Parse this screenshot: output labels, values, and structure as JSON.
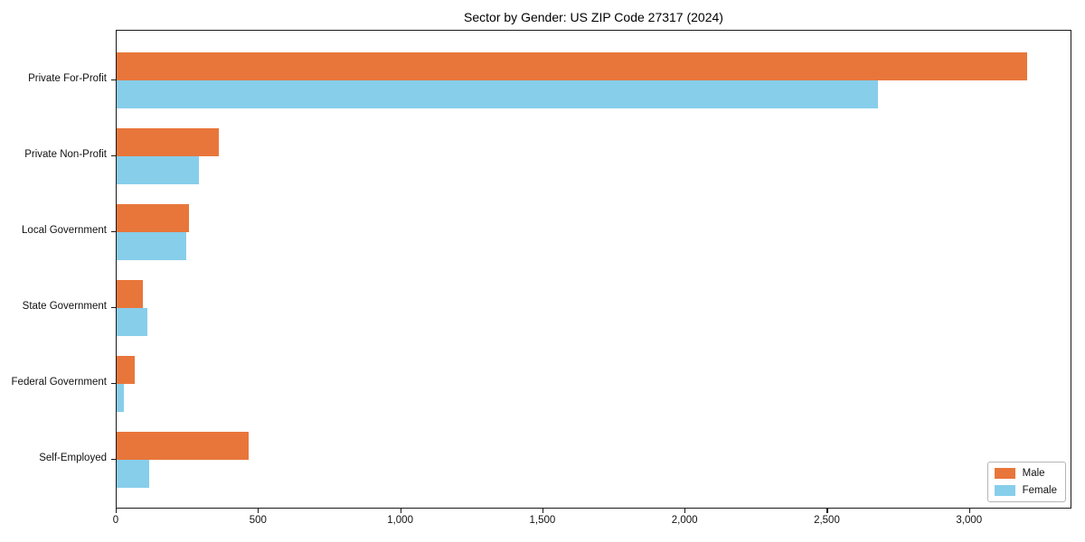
{
  "chart_data": {
    "type": "bar",
    "orientation": "horizontal",
    "title": "Sector by Gender: US ZIP Code 27317 (2024)",
    "categories": [
      "Private For-Profit",
      "Private Non-Profit",
      "Local Government",
      "State Government",
      "Federal Government",
      "Self-Employed"
    ],
    "series": [
      {
        "name": "Male",
        "color": "#E8763B",
        "values": [
          3200,
          358,
          254,
          92,
          65,
          463
        ]
      },
      {
        "name": "Female",
        "color": "#87CEEB",
        "values": [
          2678,
          290,
          246,
          108,
          25,
          114
        ]
      }
    ],
    "xlabel": "",
    "ylabel": "",
    "xlim": [
      0,
      3360
    ],
    "xticks": [
      0,
      500,
      1000,
      1500,
      2000,
      2500,
      3000
    ],
    "xtick_labels": [
      "0",
      "500",
      "1,000",
      "1,500",
      "2,000",
      "2,500",
      "3,000"
    ],
    "legend_position": "lower-right",
    "grid": false,
    "frame": true
  }
}
